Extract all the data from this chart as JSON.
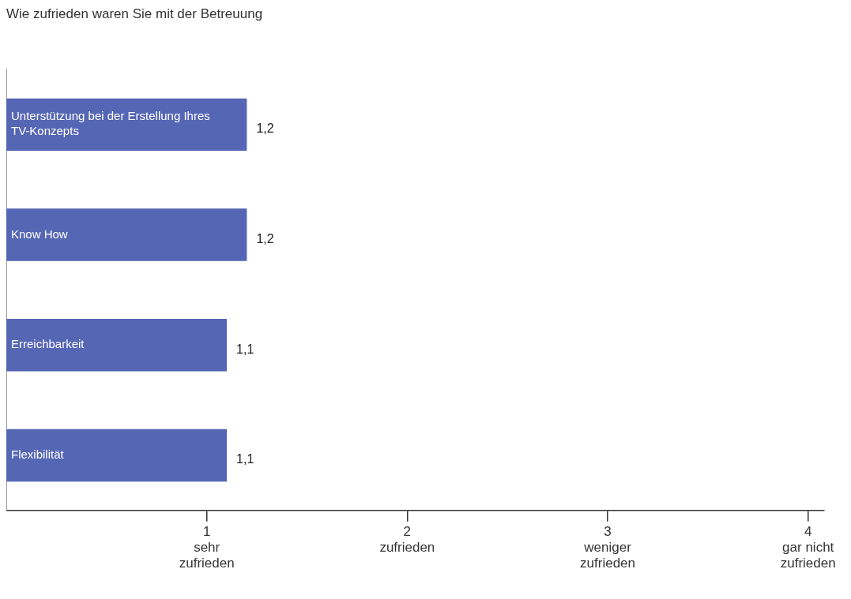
{
  "chart_data": {
    "type": "bar",
    "orientation": "horizontal",
    "title": "Wie zufrieden waren Sie mit der Betreuung",
    "categories": [
      "Unterstützung bei der Erstellung Ihres TV-Konzepts",
      "Know How",
      "Erreichbarkeit",
      "Flexibilität"
    ],
    "values": [
      1.2,
      1.2,
      1.1,
      1.1
    ],
    "value_labels": [
      "1,2",
      "1,2",
      "1,1",
      "1,1"
    ],
    "color": "#5566b4",
    "xlim": [
      0,
      4.08
    ],
    "xticks": [
      {
        "value": 1,
        "label": "1\nsehr\nzufrieden"
      },
      {
        "value": 2,
        "label": "2\nzufrieden"
      },
      {
        "value": 3,
        "label": "3\nweniger\nzufrieden"
      },
      {
        "value": 4,
        "label": "4\ngar nicht\nzufrieden"
      }
    ],
    "grid": false,
    "legend": false
  }
}
